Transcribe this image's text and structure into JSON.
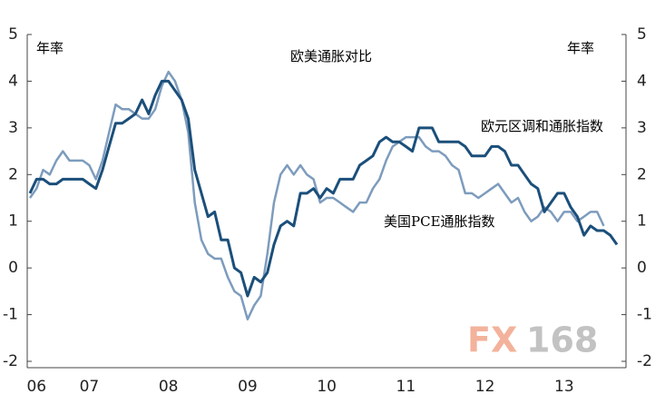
{
  "chart_data": {
    "type": "line",
    "title": "欧美通胀对比",
    "y_label_left": "年率",
    "y_label_right": "年率",
    "watermark": [
      "FX",
      "168"
    ],
    "categories": [
      null,
      "06",
      null,
      null,
      null,
      null,
      null,
      null,
      null,
      "07",
      null,
      null,
      null,
      null,
      null,
      null,
      null,
      null,
      null,
      null,
      null,
      "08",
      null,
      null,
      null,
      null,
      null,
      null,
      null,
      null,
      null,
      null,
      null,
      "09",
      null,
      null,
      null,
      null,
      null,
      null,
      null,
      null,
      null,
      null,
      null,
      "10",
      null,
      null,
      null,
      null,
      null,
      null,
      null,
      null,
      null,
      null,
      null,
      "11",
      null,
      null,
      null,
      null,
      null,
      null,
      null,
      null,
      null,
      null,
      null,
      "12",
      null,
      null,
      null,
      null,
      null,
      null,
      null,
      null,
      null,
      null,
      null,
      "13",
      null,
      null,
      null,
      null,
      null,
      null,
      null,
      null
    ],
    "series": [
      {
        "name": "欧元区调和通胀指数",
        "color": "#1b4f7a",
        "values": [
          1.6,
          1.9,
          1.9,
          1.8,
          1.8,
          1.9,
          1.9,
          1.9,
          1.9,
          1.8,
          1.7,
          2.1,
          2.6,
          3.1,
          3.1,
          3.2,
          3.3,
          3.6,
          3.3,
          3.7,
          4.0,
          4.0,
          3.8,
          3.6,
          3.2,
          2.1,
          1.6,
          1.1,
          1.2,
          0.6,
          0.6,
          0.0,
          -0.1,
          -0.6,
          -0.2,
          -0.3,
          -0.1,
          0.5,
          0.9,
          1.0,
          0.9,
          1.6,
          1.6,
          1.7,
          1.5,
          1.7,
          1.6,
          1.9,
          1.9,
          1.9,
          2.2,
          2.3,
          2.4,
          2.7,
          2.8,
          2.7,
          2.7,
          2.6,
          2.5,
          3.0,
          3.0,
          3.0,
          2.7,
          2.7,
          2.7,
          2.7,
          2.6,
          2.4,
          2.4,
          2.4,
          2.6,
          2.6,
          2.5,
          2.2,
          2.2,
          2.0,
          1.8,
          1.7,
          1.2,
          1.4,
          1.6,
          1.6,
          1.3,
          1.1,
          0.7,
          0.9,
          0.8,
          0.8,
          0.7,
          0.5
        ]
      },
      {
        "name": "美国PCE通胀指数",
        "color": "#7d9cbd",
        "values": [
          1.5,
          1.7,
          2.1,
          2.0,
          2.3,
          2.5,
          2.3,
          2.3,
          2.3,
          2.2,
          1.9,
          2.3,
          2.9,
          3.5,
          3.4,
          3.4,
          3.3,
          3.2,
          3.2,
          3.4,
          3.9,
          4.2,
          4.0,
          3.6,
          2.9,
          1.4,
          0.6,
          0.3,
          0.2,
          0.2,
          -0.2,
          -0.5,
          -0.6,
          -1.1,
          -0.8,
          -0.6,
          0.3,
          1.4,
          2.0,
          2.2,
          2.0,
          2.2,
          2.0,
          1.9,
          1.4,
          1.5,
          1.5,
          1.4,
          1.3,
          1.2,
          1.4,
          1.4,
          1.7,
          1.9,
          2.3,
          2.6,
          2.7,
          2.8,
          2.8,
          2.8,
          2.6,
          2.5,
          2.5,
          2.4,
          2.2,
          2.1,
          1.6,
          1.6,
          1.5,
          1.6,
          1.7,
          1.8,
          1.6,
          1.4,
          1.5,
          1.2,
          1.0,
          1.1,
          1.3,
          1.2,
          1.0,
          1.2,
          1.2,
          1.0,
          1.1,
          1.2,
          1.2,
          0.9,
          null,
          null
        ]
      }
    ],
    "ylim": [
      -2,
      5
    ],
    "yticks": [
      -2,
      -1,
      0,
      1,
      2,
      3,
      4,
      5
    ],
    "y2lim": [
      -2,
      5
    ],
    "y2ticks": [
      -2,
      -1,
      0,
      1,
      2,
      3,
      4,
      5
    ]
  }
}
